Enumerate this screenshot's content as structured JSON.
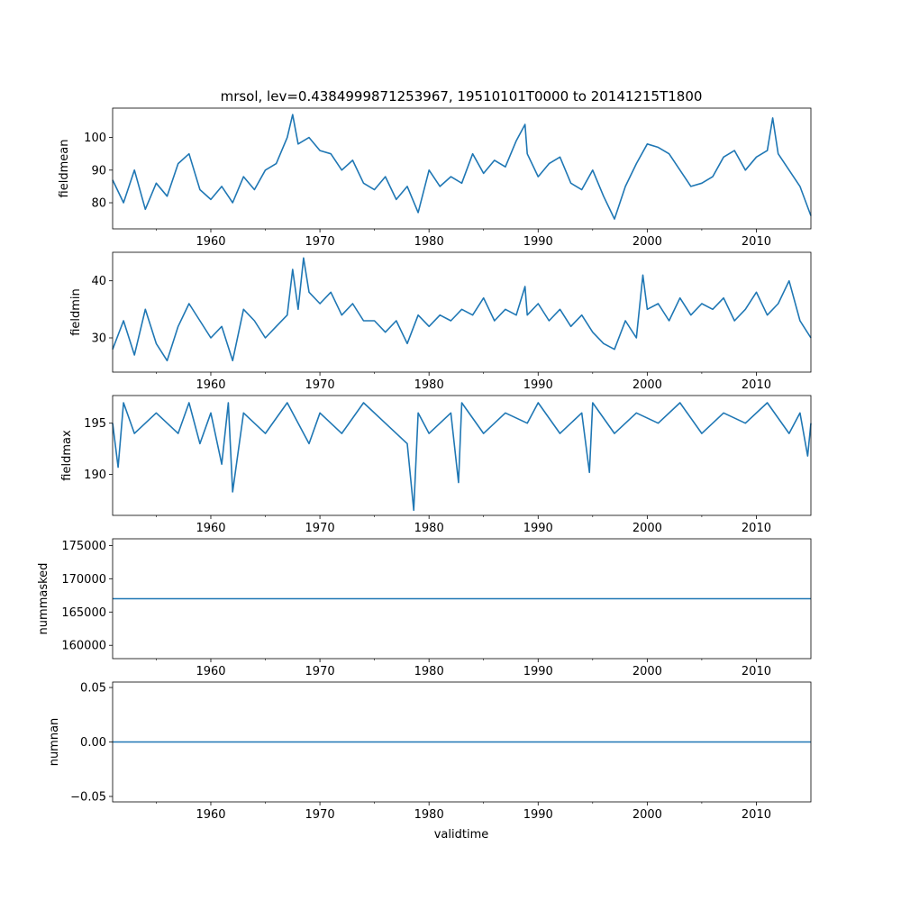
{
  "title": "mrsol, lev=0.4384999871253967, 19510101T0000 to 20141215T1800",
  "xlabel": "validtime",
  "line_color": "#1f77b4",
  "chart_data": [
    {
      "type": "line",
      "name": "fieldmean",
      "ylabel": "fieldmean",
      "xlim": [
        1951.0,
        2015.0
      ],
      "ylim": [
        72.0,
        109.0
      ],
      "x_ticks": [
        1960,
        1970,
        1980,
        1990,
        2000,
        2010
      ],
      "y_ticks": [
        80,
        90,
        100
      ],
      "x": [
        1951.0,
        1952.0,
        1953.0,
        1954.0,
        1955.0,
        1956.0,
        1957.0,
        1958.0,
        1959.0,
        1960.0,
        1961.0,
        1962.0,
        1963.0,
        1964.0,
        1965.0,
        1966.0,
        1967.0,
        1967.5,
        1968.0,
        1969.0,
        1970.0,
        1971.0,
        1972.0,
        1973.0,
        1974.0,
        1975.0,
        1976.0,
        1977.0,
        1978.0,
        1979.0,
        1980.0,
        1981.0,
        1982.0,
        1983.0,
        1984.0,
        1985.0,
        1986.0,
        1987.0,
        1988.0,
        1988.8,
        1989.0,
        1990.0,
        1991.0,
        1992.0,
        1993.0,
        1994.0,
        1995.0,
        1996.0,
        1997.0,
        1998.0,
        1999.0,
        2000.0,
        2001.0,
        2002.0,
        2003.0,
        2004.0,
        2005.0,
        2006.0,
        2007.0,
        2008.0,
        2009.0,
        2010.0,
        2011.0,
        2011.5,
        2012.0,
        2013.0,
        2014.0,
        2015.0
      ],
      "values": [
        87,
        80,
        90,
        78,
        86,
        82,
        92,
        95,
        84,
        81,
        85,
        80,
        88,
        84,
        90,
        92,
        100,
        107,
        98,
        100,
        96,
        95,
        90,
        93,
        86,
        84,
        88,
        81,
        85,
        77,
        90,
        85,
        88,
        86,
        95,
        89,
        93,
        91,
        99,
        104,
        95,
        88,
        92,
        94,
        86,
        84,
        90,
        82,
        75,
        85,
        92,
        98,
        97,
        95,
        90,
        85,
        86,
        88,
        94,
        96,
        90,
        94,
        96,
        106,
        95,
        90,
        85,
        76
      ]
    },
    {
      "type": "line",
      "name": "fieldmin",
      "ylabel": "fieldmin",
      "xlim": [
        1951.0,
        2015.0
      ],
      "ylim": [
        24.0,
        45.0
      ],
      "x_ticks": [
        1960,
        1970,
        1980,
        1990,
        2000,
        2010
      ],
      "y_ticks": [
        30,
        40
      ],
      "x": [
        1951.0,
        1952.0,
        1953.0,
        1954.0,
        1955.0,
        1956.0,
        1957.0,
        1958.0,
        1959.0,
        1960.0,
        1961.0,
        1962.0,
        1963.0,
        1964.0,
        1965.0,
        1966.0,
        1967.0,
        1967.5,
        1968.0,
        1968.5,
        1969.0,
        1970.0,
        1971.0,
        1972.0,
        1973.0,
        1974.0,
        1975.0,
        1976.0,
        1977.0,
        1978.0,
        1979.0,
        1980.0,
        1981.0,
        1982.0,
        1983.0,
        1984.0,
        1985.0,
        1986.0,
        1987.0,
        1988.0,
        1988.8,
        1989.0,
        1990.0,
        1991.0,
        1992.0,
        1993.0,
        1994.0,
        1995.0,
        1996.0,
        1997.0,
        1998.0,
        1999.0,
        1999.6,
        2000.0,
        2001.0,
        2002.0,
        2003.0,
        2004.0,
        2005.0,
        2006.0,
        2007.0,
        2008.0,
        2009.0,
        2010.0,
        2011.0,
        2012.0,
        2013.0,
        2014.0,
        2015.0
      ],
      "values": [
        28,
        33,
        27,
        35,
        29,
        26,
        32,
        36,
        33,
        30,
        32,
        26,
        35,
        33,
        30,
        32,
        34,
        42,
        35,
        44,
        38,
        36,
        38,
        34,
        36,
        33,
        33,
        31,
        33,
        29,
        34,
        32,
        34,
        33,
        35,
        34,
        37,
        33,
        35,
        34,
        39,
        34,
        36,
        33,
        35,
        32,
        34,
        31,
        29,
        28,
        33,
        30,
        41,
        35,
        36,
        33,
        37,
        34,
        36,
        35,
        37,
        33,
        35,
        38,
        34,
        36,
        40,
        33,
        30
      ]
    },
    {
      "type": "line",
      "name": "fieldmax",
      "ylabel": "fieldmax",
      "xlim": [
        1951.0,
        2015.0
      ],
      "ylim": [
        186.0,
        197.7
      ],
      "x_ticks": [
        1960,
        1970,
        1980,
        1990,
        2000,
        2010
      ],
      "y_ticks": [
        190,
        195
      ],
      "x": [
        1951.0,
        1951.5,
        1952.0,
        1953.0,
        1955.0,
        1957.0,
        1958.0,
        1959.0,
        1960.0,
        1961.0,
        1961.6,
        1962.0,
        1963.0,
        1965.0,
        1967.0,
        1969.0,
        1970.0,
        1972.0,
        1974.0,
        1976.0,
        1978.0,
        1978.6,
        1979.0,
        1980.0,
        1982.0,
        1982.7,
        1983.0,
        1985.0,
        1987.0,
        1989.0,
        1990.0,
        1992.0,
        1994.0,
        1994.7,
        1995.0,
        1997.0,
        1999.0,
        2001.0,
        2003.0,
        2005.0,
        2007.0,
        2009.0,
        2011.0,
        2013.0,
        2014.0,
        2014.7,
        2015.0
      ],
      "values": [
        195,
        190.7,
        197,
        194,
        196,
        194,
        197,
        193,
        196,
        191,
        197,
        188.3,
        196,
        194,
        197,
        193,
        196,
        194,
        197,
        195,
        193,
        186.5,
        196,
        194,
        196,
        189.2,
        197,
        194,
        196,
        195,
        197,
        194,
        196,
        190.2,
        197,
        194,
        196,
        195,
        197,
        194,
        196,
        195,
        197,
        194,
        196,
        191.8,
        195
      ]
    },
    {
      "type": "line",
      "name": "nummasked",
      "ylabel": "nummasked",
      "xlim": [
        1951.0,
        2015.0
      ],
      "ylim": [
        158000,
        176000
      ],
      "x_ticks": [
        1960,
        1970,
        1980,
        1990,
        2000,
        2010
      ],
      "y_ticks": [
        160000,
        165000,
        170000,
        175000
      ],
      "x": [
        1951.0,
        2015.0
      ],
      "values": [
        167000,
        167000
      ]
    },
    {
      "type": "line",
      "name": "numnan",
      "ylabel": "numnan",
      "xlim": [
        1951.0,
        2015.0
      ],
      "ylim": [
        -0.055,
        0.055
      ],
      "x_ticks": [
        1960,
        1970,
        1980,
        1990,
        2000,
        2010
      ],
      "y_ticks": [
        -0.05,
        0.0,
        0.05
      ],
      "y_tick_labels": [
        "−0.05",
        "0.00",
        "0.05"
      ],
      "x": [
        1951.0,
        2015.0
      ],
      "values": [
        0,
        0
      ]
    }
  ]
}
